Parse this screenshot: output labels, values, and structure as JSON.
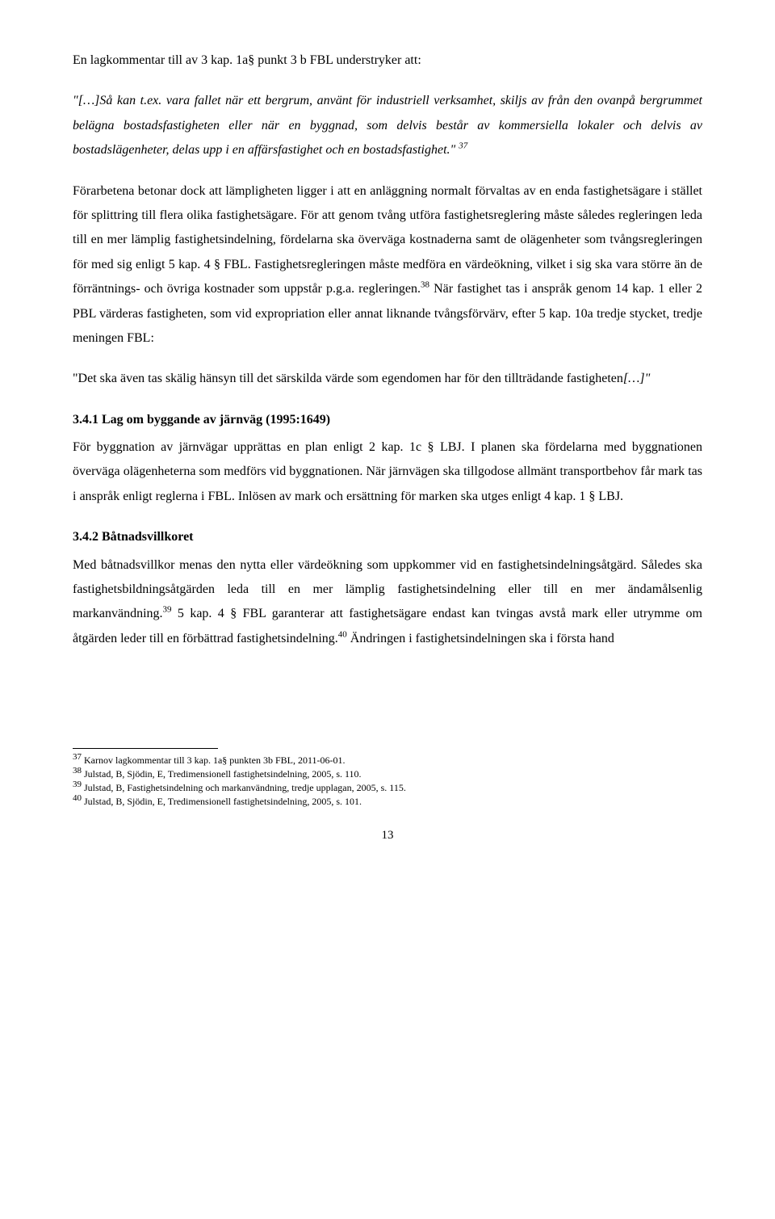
{
  "p1": "En lagkommentar till av 3 kap. 1a§ punkt 3 b FBL understryker att:",
  "q1_prefix": "\"[…]",
  "q1": "Så kan t.ex. vara fallet när ett bergrum, använt för industriell verksamhet, skiljs av från den ovanpå bergrummet belägna bostadsfastigheten eller när en byggnad, som delvis består av kommersiella lokaler och delvis av bostadslägenheter, delas upp i en affärsfastighet och en bostadsfastighet.\"",
  "q1_sup": "37",
  "p2a": "Förarbetena betonar dock att lämpligheten ligger i att en anläggning normalt förvaltas av en enda fastighetsägare i stället för splittring till flera olika fastighetsägare. För att genom tvång utföra fastighetsreglering måste således regleringen leda till en mer lämplig fastighetsindelning, fördelarna ska överväga kostnaderna samt de olägenheter som tvångsregleringen för med sig enligt 5 kap. 4 § FBL. Fastighetsregleringen måste medföra en värdeökning, vilket i sig ska vara större än de förräntnings- och övriga kostnader som uppstår p.g.a. regleringen.",
  "p2_sup1": "38",
  "p2b": " När fastighet tas i anspråk genom 14 kap. 1 eller 2 PBL värderas fastigheten, som vid expropriation eller annat liknande tvångsförvärv, efter 5 kap. 10a tredje stycket, tredje meningen FBL:",
  "q2_prefix": "\"",
  "q2": "Det ska även tas skälig hänsyn till det särskilda värde som egendomen har för den tillträdande fastigheten",
  "q2_suffix": "[…]\"",
  "h1": "3.4.1 Lag om byggande av järnväg (1995:1649)",
  "p3": "För byggnation av järnvägar upprättas en plan enligt 2 kap. 1c § LBJ. I planen ska fördelarna med byggnationen överväga olägenheterna som medförs vid byggnationen. När järnvägen ska tillgodose allmänt transportbehov får mark tas i anspråk enligt reglerna i FBL. Inlösen av mark och ersättning för marken ska utges enligt 4 kap. 1 § LBJ.",
  "h2": "3.4.2 Båtnadsvillkoret",
  "p4a": "Med båtnadsvillkor menas den nytta eller värdeökning som uppkommer vid en fastighetsindelningsåtgärd. Således ska fastighetsbildningsåtgärden leda till en mer lämplig fastighetsindelning eller till en mer ändamålsenlig markanvändning.",
  "p4_sup1": "39",
  "p4b": " 5 kap. 4 § FBL garanterar att fastighetsägare endast kan tvingas avstå mark eller utrymme om åtgärden leder till en förbättrad fastighetsindelning.",
  "p4_sup2": "40",
  "p4c": " Ändringen i fastighetsindelningen ska i första hand",
  "fn37": " Karnov lagkommentar till 3 kap. 1a§ punkten 3b FBL, 2011-06-01.",
  "fn38": " Julstad, B, Sjödin, E, Tredimensionell fastighetsindelning, 2005, s. 110.",
  "fn39": " Julstad, B, Fastighetsindelning och markanvändning, tredje upplagan, 2005, s. 115.",
  "fn40": " Julstad, B, Sjödin, E, Tredimensionell fastighetsindelning, 2005, s. 101.",
  "fn37_n": "37",
  "fn38_n": "38",
  "fn39_n": "39",
  "fn40_n": "40",
  "pagenum": "13"
}
